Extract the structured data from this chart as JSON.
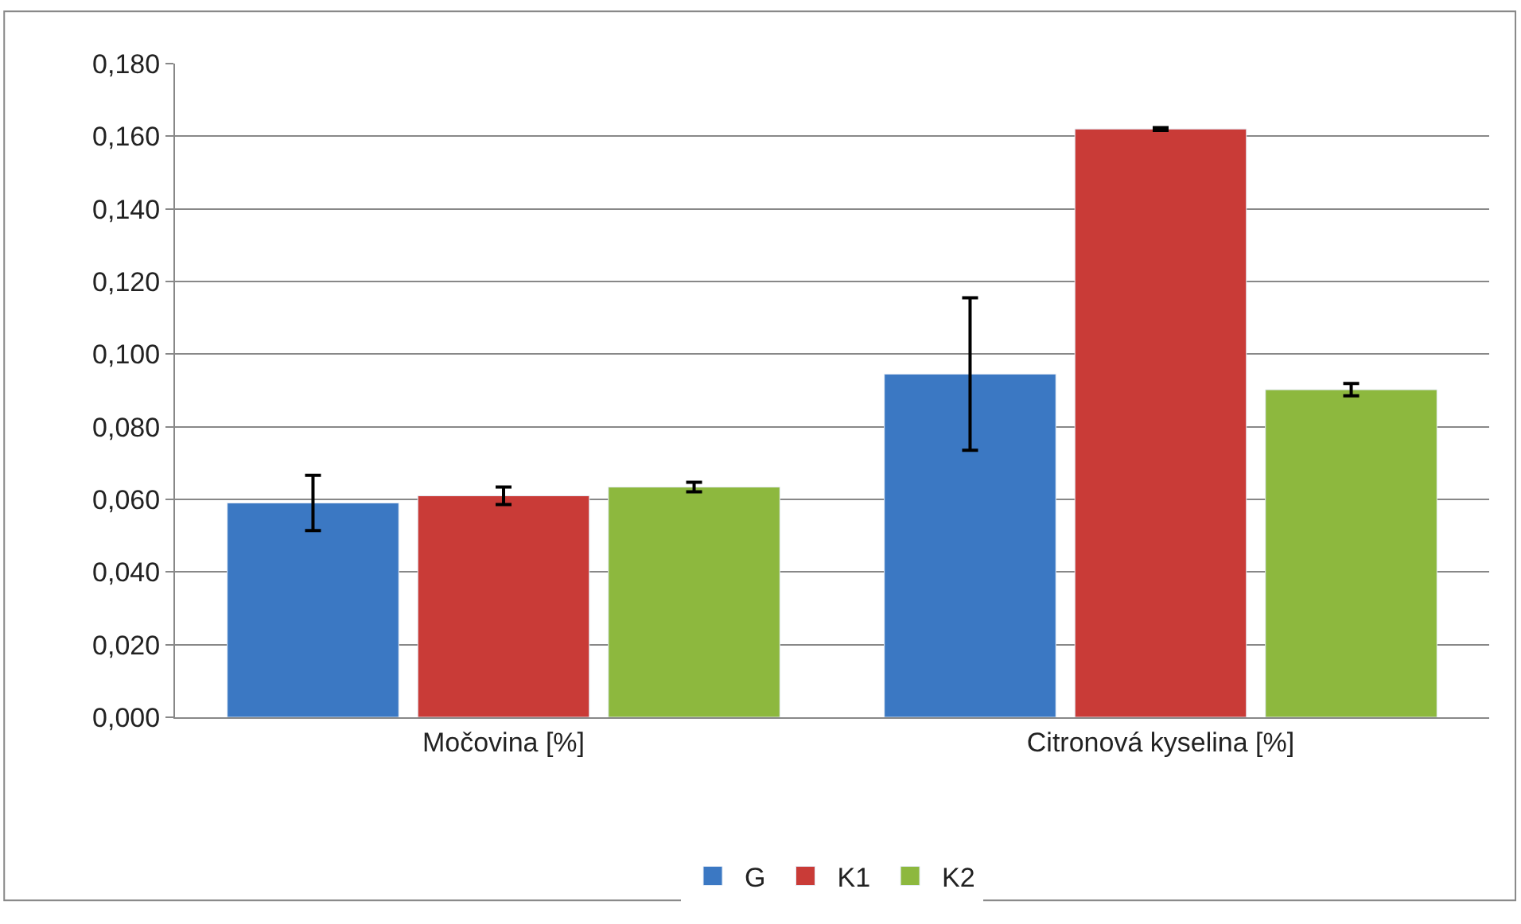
{
  "chart_data": {
    "type": "bar",
    "categories": [
      "Močovina [%]",
      "Citronová kyselina [%]"
    ],
    "series": [
      {
        "name": "G",
        "color": "#3b78c3",
        "values": [
          0.059,
          0.0945
        ],
        "errors": [
          0.0076,
          0.021
        ]
      },
      {
        "name": "K1",
        "color": "#c93b37",
        "values": [
          0.061,
          0.162
        ],
        "errors": [
          0.0024,
          0.0004
        ]
      },
      {
        "name": "K2",
        "color": "#8db83e",
        "values": [
          0.0634,
          0.0902
        ],
        "errors": [
          0.0013,
          0.0017
        ]
      }
    ],
    "ylim": [
      0,
      0.18
    ],
    "yticks": [
      {
        "value": 0,
        "label": "0,000"
      },
      {
        "value": 0.02,
        "label": "0,020"
      },
      {
        "value": 0.04,
        "label": "0,040"
      },
      {
        "value": 0.06,
        "label": "0,060"
      },
      {
        "value": 0.08,
        "label": "0,080"
      },
      {
        "value": 0.1,
        "label": "0,100"
      },
      {
        "value": 0.12,
        "label": "0,120"
      },
      {
        "value": 0.14,
        "label": "0,140"
      },
      {
        "value": 0.16,
        "label": "0,160"
      },
      {
        "value": 0.18,
        "label": "0,180"
      }
    ],
    "grid": "y",
    "legend": "bottom"
  }
}
